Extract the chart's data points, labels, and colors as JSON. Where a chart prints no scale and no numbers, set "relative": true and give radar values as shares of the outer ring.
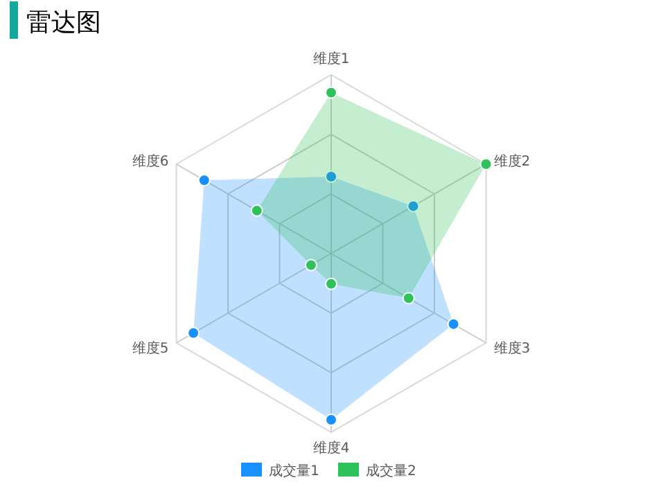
{
  "chart_data": {
    "type": "radar",
    "title": "雷达图",
    "relative": true,
    "categories": [
      "维度1",
      "维度2",
      "维度3",
      "维度4",
      "维度5",
      "维度6"
    ],
    "series": [
      {
        "name": "成交量1",
        "color": "#1890ff",
        "values": [
          0.43,
          0.53,
          0.79,
          0.93,
          0.89,
          0.82
        ]
      },
      {
        "name": "成交量2",
        "color": "#2fc25b",
        "values": [
          0.9,
          1.0,
          0.5,
          0.17,
          0.13,
          0.48
        ]
      }
    ],
    "grid": true,
    "legend": "bottom",
    "marker": "circle"
  }
}
